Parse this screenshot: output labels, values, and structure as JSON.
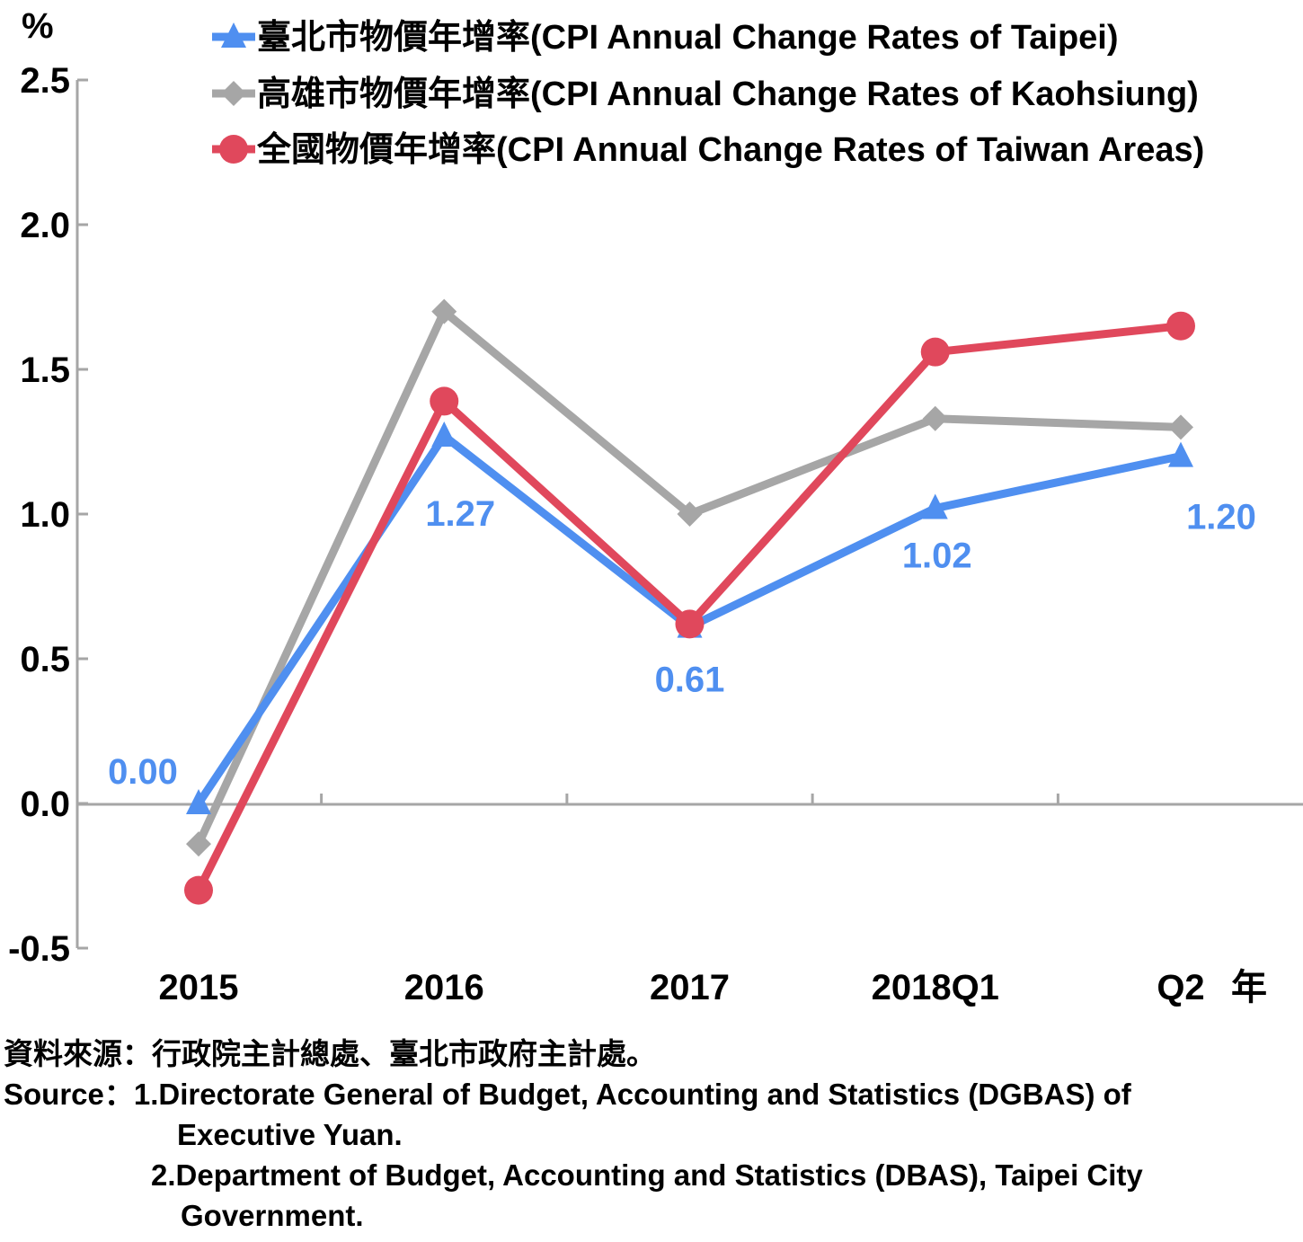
{
  "chart_data": {
    "type": "line",
    "unit_label": "%",
    "x_unit_label": "年",
    "categories": [
      "2015",
      "2016",
      "2017",
      "2018Q1",
      "Q2"
    ],
    "ylim": [
      -0.5,
      2.5
    ],
    "yticks": [
      "2.5",
      "2.0",
      "1.5",
      "1.0",
      "0.5",
      "0.0",
      "-0.5"
    ],
    "grid": false,
    "legend_position": "top-right",
    "series": [
      {
        "name": "臺北市物價年增率(CPI Annual Change Rates of Taipei)",
        "color": "#4f8ff0",
        "marker": "triangle",
        "values": [
          0.0,
          1.27,
          0.61,
          1.02,
          1.2
        ],
        "labels": [
          "0.00",
          "1.27",
          "0.61",
          "1.02",
          "1.20"
        ]
      },
      {
        "name": "高雄市物價年增率(CPI Annual Change Rates of Kaohsiung)",
        "color": "#a6a6a6",
        "marker": "diamond",
        "values": [
          -0.14,
          1.7,
          1.0,
          1.33,
          1.3
        ]
      },
      {
        "name": "全國物價年增率(CPI Annual Change Rates of Taiwan Areas)",
        "color": "#e0485c",
        "marker": "circle",
        "values": [
          -0.3,
          1.39,
          0.62,
          1.56,
          1.65
        ]
      }
    ]
  },
  "source": {
    "zh": "資料來源：行政院主計總處、臺北市政府主計處。",
    "en_prefix": "Source：",
    "line1": "1.Directorate General of Budget, Accounting and Statistics (DGBAS) of",
    "line1_cont": "Executive Yuan.",
    "line2": "2.Department of Budget, Accounting and Statistics (DBAS), Taipei City",
    "line2_cont": "Government."
  }
}
